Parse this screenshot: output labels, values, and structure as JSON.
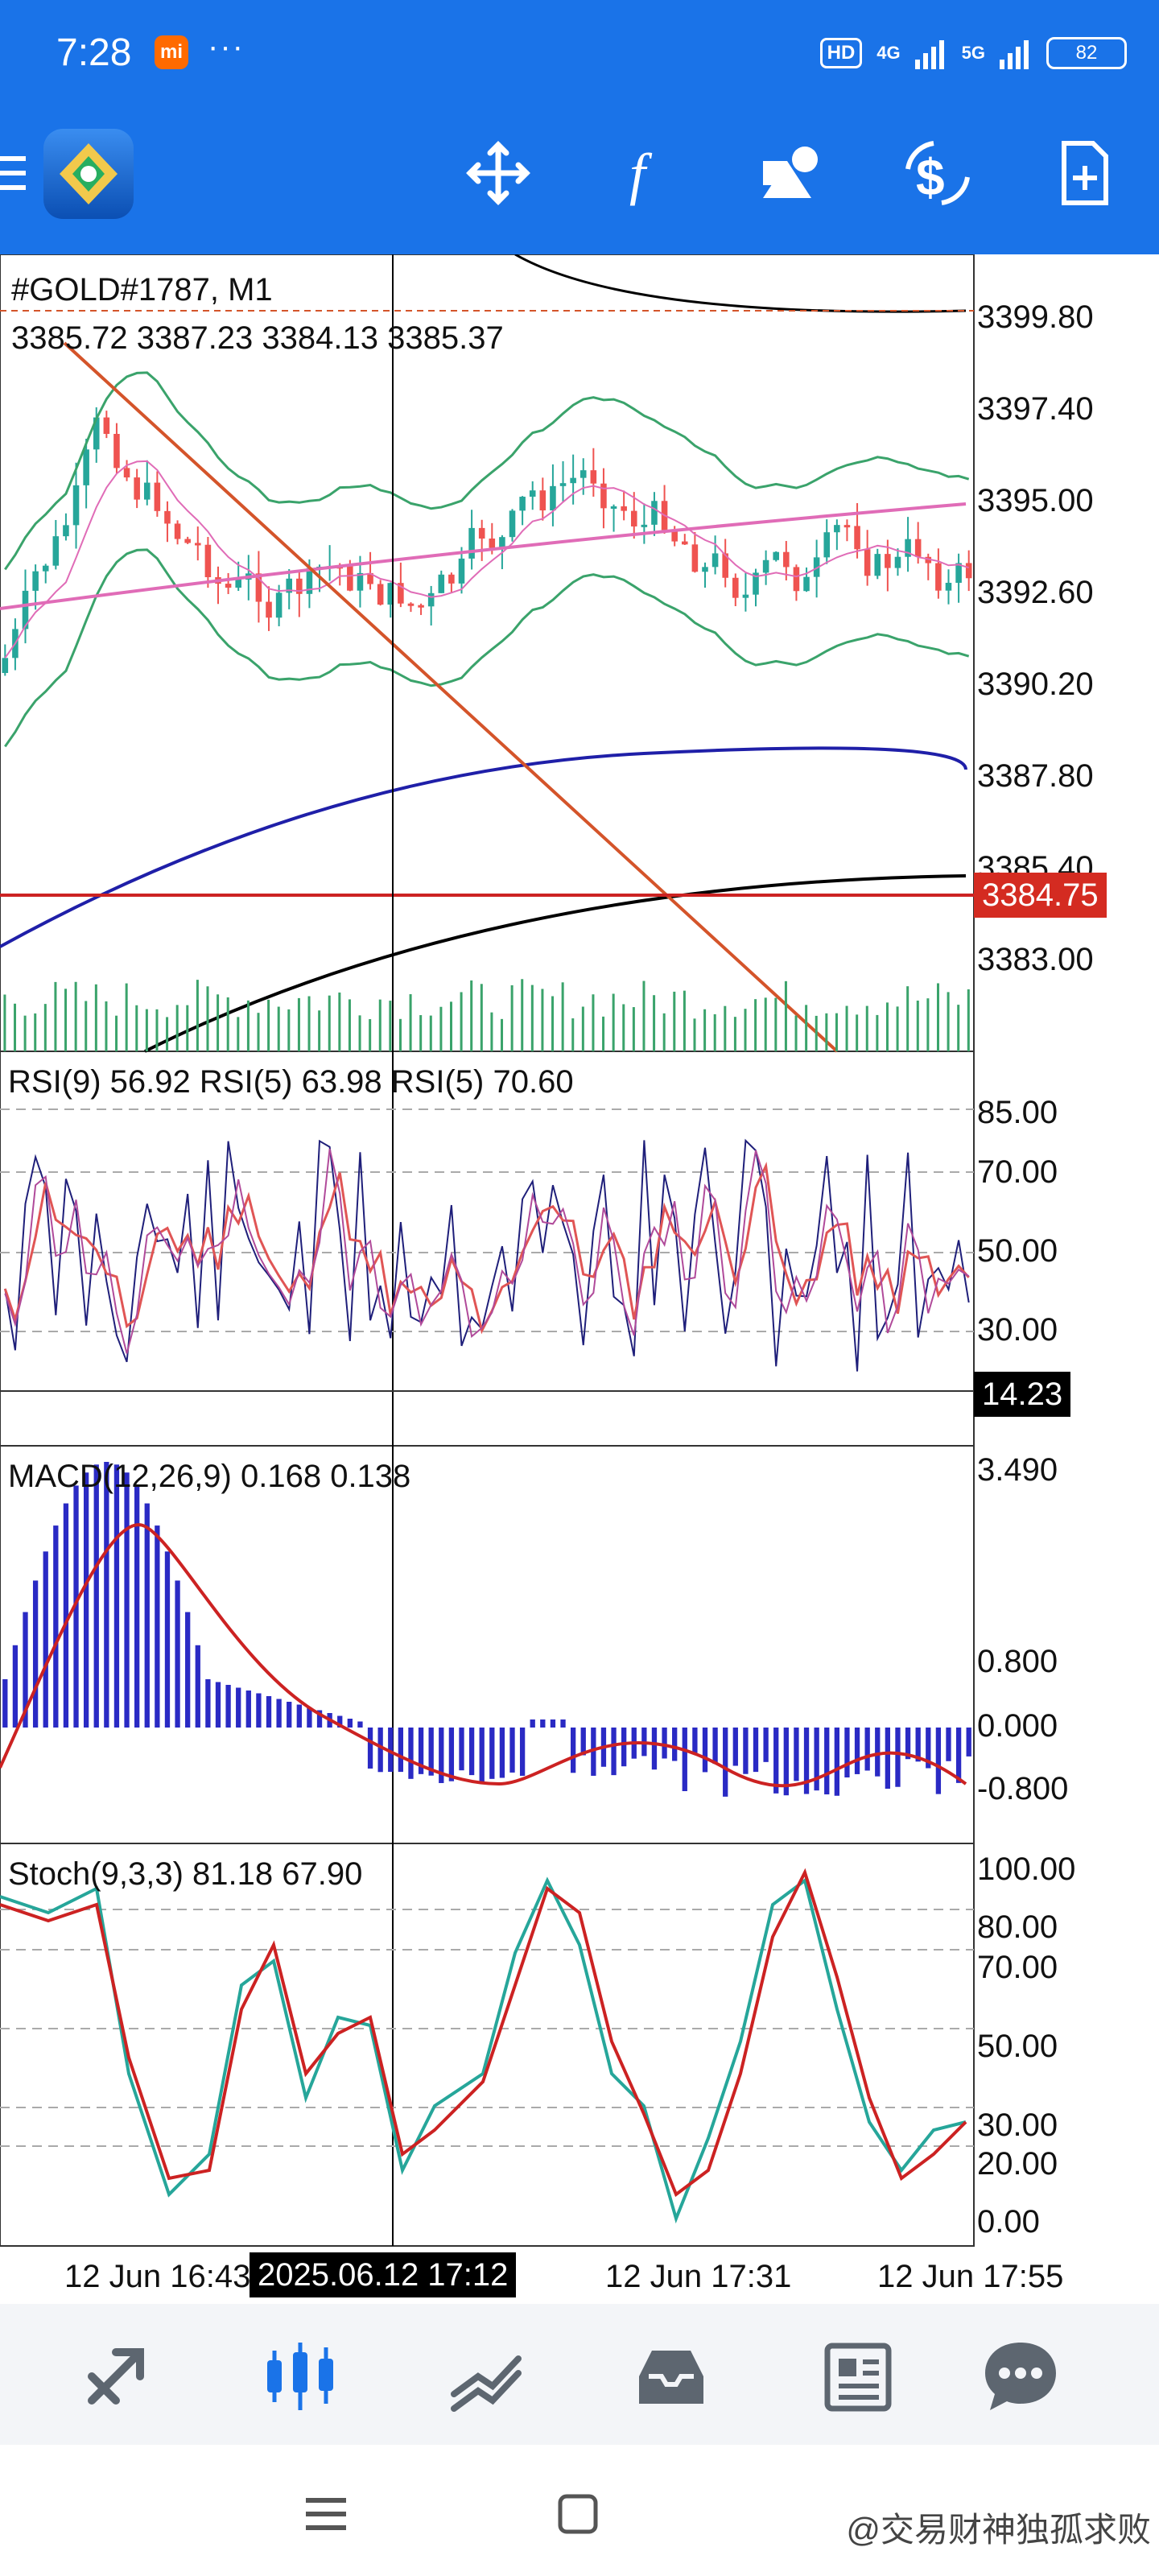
{
  "status_bar": {
    "time": "7:28",
    "carrier_badge": "mi",
    "more": "···",
    "hd": "HD",
    "net1": "4G",
    "net2": "5G",
    "battery": "82"
  },
  "toolbar": {
    "icons": [
      "menu-icon",
      "app-logo",
      "crosshair-move-icon",
      "function-icon",
      "objects-icon",
      "trade-icon",
      "new-order-icon"
    ]
  },
  "chart": {
    "symbol": "#GOLD#1787, M1",
    "ohlc": "3385.72 3387.23 3384.13 3385.37",
    "price_axis": [
      "3399.80",
      "3397.40",
      "3395.00",
      "3392.60",
      "3390.20",
      "3387.80",
      "3385.40",
      "3383.00"
    ],
    "current_price": "3384.75",
    "rsi_title": "RSI(9) 56.92 RSI(5) 63.98 RSI(5) 70.60",
    "rsi_axis": [
      "85.00",
      "70.00",
      "50.00",
      "30.00"
    ],
    "rsi_cursor_value": "14.23",
    "macd_title": "MACD(12,26,9) 0.168 0.138",
    "macd_axis": [
      "3.490",
      "0.800",
      "0.000",
      "-0.800"
    ],
    "stoch_title": "Stoch(9,3,3) 81.18 67.90",
    "stoch_axis": [
      "100.00",
      "80.00",
      "70.00",
      "50.00",
      "30.00",
      "20.00",
      "0.00"
    ],
    "time_axis": [
      "12 Jun 16:43",
      "12 Jun 17:31",
      "12 Jun 17:55"
    ],
    "cursor_time": "2025.06.12 17:12",
    "colors": {
      "bull": "#26a69a",
      "bear": "#ef5350",
      "ma_blue": "#1f1fa8",
      "ma_pink": "#e06cb7",
      "ma_black": "#000000",
      "bands": "#3aa36b",
      "trendline": "#d4542a",
      "hline": "#cc2222",
      "macd_hist": "#2a2ac4",
      "signal": "#cc2222"
    }
  },
  "bottom_nav": {
    "icons": [
      "quotes-icon",
      "chart-icon",
      "trade-icon",
      "history-icon",
      "news-icon",
      "chat-icon"
    ],
    "active": "chart-icon"
  },
  "system_nav": {
    "watermark": "@交易财神独孤求败"
  }
}
